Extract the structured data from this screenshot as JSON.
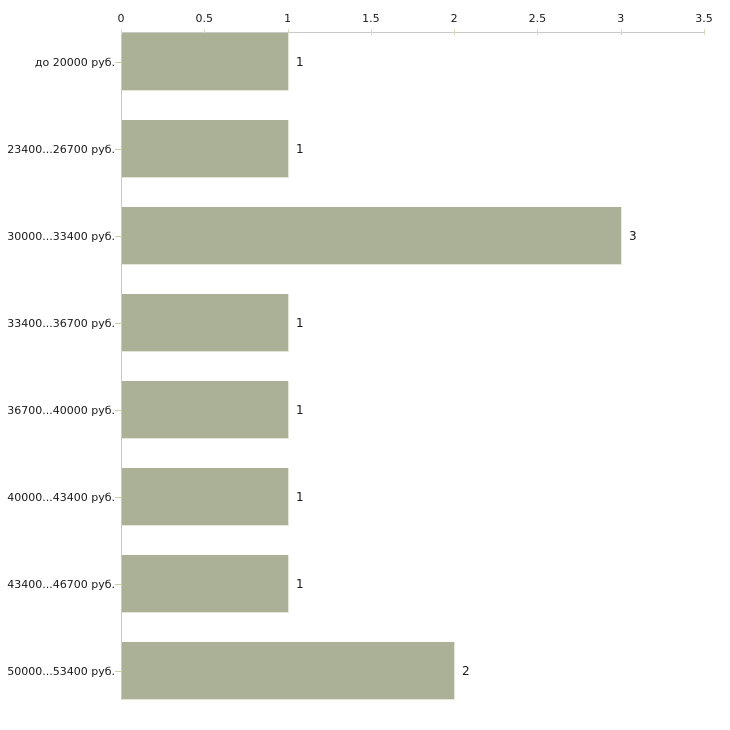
{
  "chart_data": {
    "type": "bar",
    "orientation": "horizontal",
    "title": "",
    "categories": [
      "до 20000 руб.",
      "23400...26700 руб.",
      "30000...33400 руб.",
      "33400...36700 руб.",
      "36700...40000 руб.",
      "40000...43400 руб.",
      "43400...46700 руб.",
      "50000...53400 руб."
    ],
    "values": [
      1,
      1,
      3,
      1,
      1,
      1,
      1,
      2
    ],
    "value_labels": [
      "1",
      "1",
      "3",
      "1",
      "1",
      "1",
      "1",
      "2"
    ],
    "x_axis": {
      "position": "top",
      "tick_labels": [
        "0",
        "0.5",
        "1",
        "1.5",
        "2",
        "2.5",
        "3",
        "3.5"
      ],
      "tick_values": [
        0,
        0.5,
        1,
        1.5,
        2,
        2.5,
        3,
        3.5
      ]
    },
    "xlim": [
      0,
      3.5
    ],
    "grid": false,
    "legend": false,
    "colors": {
      "background": "#ffffff",
      "bar": "#abb197",
      "bar_edge": "#e3e6d8",
      "axis": "#c9c9c9",
      "x_tick": "#d8dabd",
      "category_tick": "#ccd0a8",
      "text": "#1a1a1a"
    }
  }
}
